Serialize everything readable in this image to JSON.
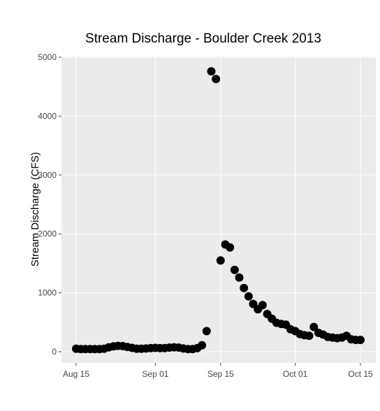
{
  "chart_data": {
    "type": "scatter",
    "title": "Stream Discharge - Boulder Creek 2013",
    "xlabel": "",
    "ylabel": "Stream Discharge (CFS)",
    "xlim": [
      "2013-08-15",
      "2013-10-15"
    ],
    "ylim": [
      0,
      5000
    ],
    "grid": true,
    "colors": {
      "point": "#000000",
      "panel": "#ebebeb",
      "grid": "#ffffff"
    },
    "x_ticks": [
      "Aug 15",
      "Sep 01",
      "Sep 15",
      "Oct 01",
      "Oct 15"
    ],
    "y_ticks": [
      "0",
      "1000",
      "2000",
      "3000",
      "4000",
      "5000"
    ],
    "series": [
      {
        "x": [
          "2013-08-15",
          "2013-08-16",
          "2013-08-17",
          "2013-08-18",
          "2013-08-19",
          "2013-08-20",
          "2013-08-21",
          "2013-08-22",
          "2013-08-23",
          "2013-08-24",
          "2013-08-25",
          "2013-08-26",
          "2013-08-27",
          "2013-08-28",
          "2013-08-29",
          "2013-08-30",
          "2013-08-31",
          "2013-09-01",
          "2013-09-02",
          "2013-09-03",
          "2013-09-04",
          "2013-09-05",
          "2013-09-06",
          "2013-09-07",
          "2013-09-08",
          "2013-09-09",
          "2013-09-10",
          "2013-09-11",
          "2013-09-12",
          "2013-09-13",
          "2013-09-14",
          "2013-09-15",
          "2013-09-16",
          "2013-09-17",
          "2013-09-18",
          "2013-09-19",
          "2013-09-20",
          "2013-09-21",
          "2013-09-22",
          "2013-09-23",
          "2013-09-24",
          "2013-09-25",
          "2013-09-26",
          "2013-09-27",
          "2013-09-28",
          "2013-09-29",
          "2013-09-30",
          "2013-10-01",
          "2013-10-02",
          "2013-10-03",
          "2013-10-04",
          "2013-10-05",
          "2013-10-06",
          "2013-10-07",
          "2013-10-08",
          "2013-10-09",
          "2013-10-10",
          "2013-10-11",
          "2013-10-12",
          "2013-10-13",
          "2013-10-14",
          "2013-10-15"
        ],
        "y": [
          50,
          45,
          45,
          45,
          45,
          45,
          50,
          75,
          90,
          100,
          95,
          80,
          65,
          50,
          50,
          55,
          60,
          65,
          60,
          60,
          70,
          75,
          70,
          55,
          45,
          45,
          60,
          110,
          350,
          4760,
          4630,
          1550,
          1820,
          1770,
          1390,
          1260,
          1080,
          940,
          810,
          720,
          790,
          640,
          560,
          490,
          470,
          460,
          380,
          350,
          300,
          280,
          270,
          420,
          320,
          290,
          250,
          240,
          230,
          240,
          270,
          210,
          200,
          200
        ]
      }
    ]
  }
}
